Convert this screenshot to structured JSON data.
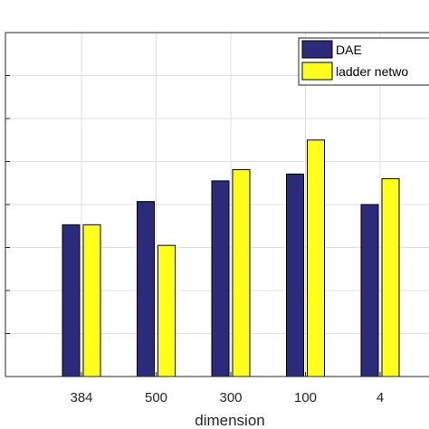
{
  "chart_data": {
    "type": "bar",
    "categories": [
      "384",
      "500",
      "300",
      "100",
      "4"
    ],
    "series": [
      {
        "name": "DAE",
        "values": [
          0.453,
          0.507,
          0.555,
          0.571,
          0.5
        ],
        "color": "#2b2a7b"
      },
      {
        "name": "ladder netwo",
        "values": [
          0.453,
          0.405,
          0.581,
          0.65,
          0.56
        ],
        "color": "#ffff1a"
      }
    ],
    "xlabel": "dimension",
    "ylabel": "",
    "ylim": [
      0.1,
      0.9
    ],
    "grid": true,
    "legend_position": "top-right",
    "colors": {
      "background": "#ffffff",
      "grid": "#e0e0e0",
      "axis": "#262626",
      "bar_edge": "#000000"
    }
  }
}
